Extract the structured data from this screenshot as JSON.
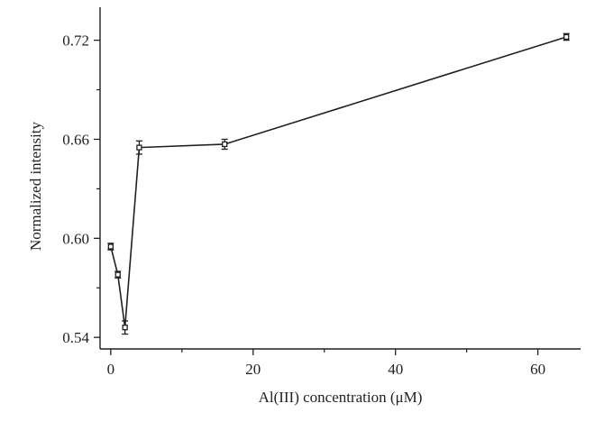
{
  "chart_data": {
    "type": "line",
    "title": "",
    "xlabel": "Al(III) concentration (μM)",
    "ylabel": "Normalized intensity",
    "xlim": [
      -1.5,
      66
    ],
    "ylim": [
      0.533,
      0.74
    ],
    "x_ticks": [
      0,
      20,
      40,
      60
    ],
    "x_tick_labels": [
      "0",
      "20",
      "40",
      "60"
    ],
    "x_minor_ticks": [
      10,
      30,
      50
    ],
    "y_ticks": [
      0.54,
      0.6,
      0.66,
      0.72
    ],
    "y_tick_labels": [
      "0.54",
      "0.60",
      "0.66",
      "0.72"
    ],
    "y_minor_ticks": [
      0.57,
      0.63,
      0.69
    ],
    "grid": false,
    "legend": "none",
    "marker": "open-square",
    "line_color": "#231f20",
    "series": [
      {
        "x": [
          0,
          1,
          2,
          4,
          16,
          64
        ],
        "y": [
          0.595,
          0.578,
          0.546,
          0.655,
          0.657,
          0.722
        ],
        "error": [
          0.002,
          0.002,
          0.004,
          0.004,
          0.003,
          0.002
        ]
      }
    ]
  }
}
